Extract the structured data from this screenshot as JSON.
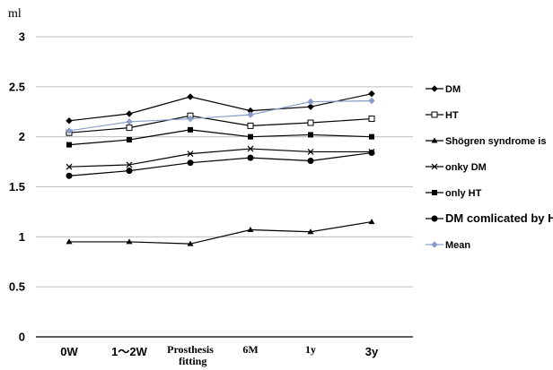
{
  "chart_data": {
    "type": "line",
    "title": "",
    "ylabel": "ml",
    "xlabel": "",
    "ylim": [
      0,
      3
    ],
    "yticks": [
      "0",
      "0.5",
      "1",
      "1.5",
      "2",
      "2.5",
      "3"
    ],
    "categories": [
      "0W",
      "1～2W",
      "Prosthesis fitting",
      "6M",
      "1y",
      "3y"
    ],
    "grid": "horizontal",
    "legend_position": "right",
    "series": [
      {
        "name": "DM",
        "marker": "diamond",
        "color": "#000000",
        "values": [
          2.16,
          2.23,
          2.4,
          2.26,
          2.3,
          2.43
        ]
      },
      {
        "name": "HT",
        "marker": "open-square",
        "color": "#000000",
        "values": [
          2.04,
          2.09,
          2.21,
          2.11,
          2.14,
          2.18
        ]
      },
      {
        "name": "Shögren syndrome is",
        "marker": "triangle",
        "color": "#000000",
        "values": [
          0.95,
          0.95,
          0.93,
          1.07,
          1.05,
          1.15
        ]
      },
      {
        "name": "onky DM",
        "marker": "x",
        "color": "#000000",
        "values": [
          1.7,
          1.72,
          1.83,
          1.88,
          1.85,
          1.85
        ]
      },
      {
        "name": "only HT",
        "marker": "square",
        "color": "#000000",
        "values": [
          1.92,
          1.97,
          2.07,
          2.0,
          2.02,
          2.0
        ]
      },
      {
        "name": "DM comlicated by HT",
        "marker": "circle",
        "color": "#000000",
        "values": [
          1.61,
          1.66,
          1.74,
          1.79,
          1.76,
          1.84
        ]
      },
      {
        "name": "Mean",
        "marker": "diamond",
        "color": "#8a9dc9",
        "values": [
          2.06,
          2.15,
          2.18,
          2.22,
          2.35,
          2.36
        ]
      }
    ]
  }
}
